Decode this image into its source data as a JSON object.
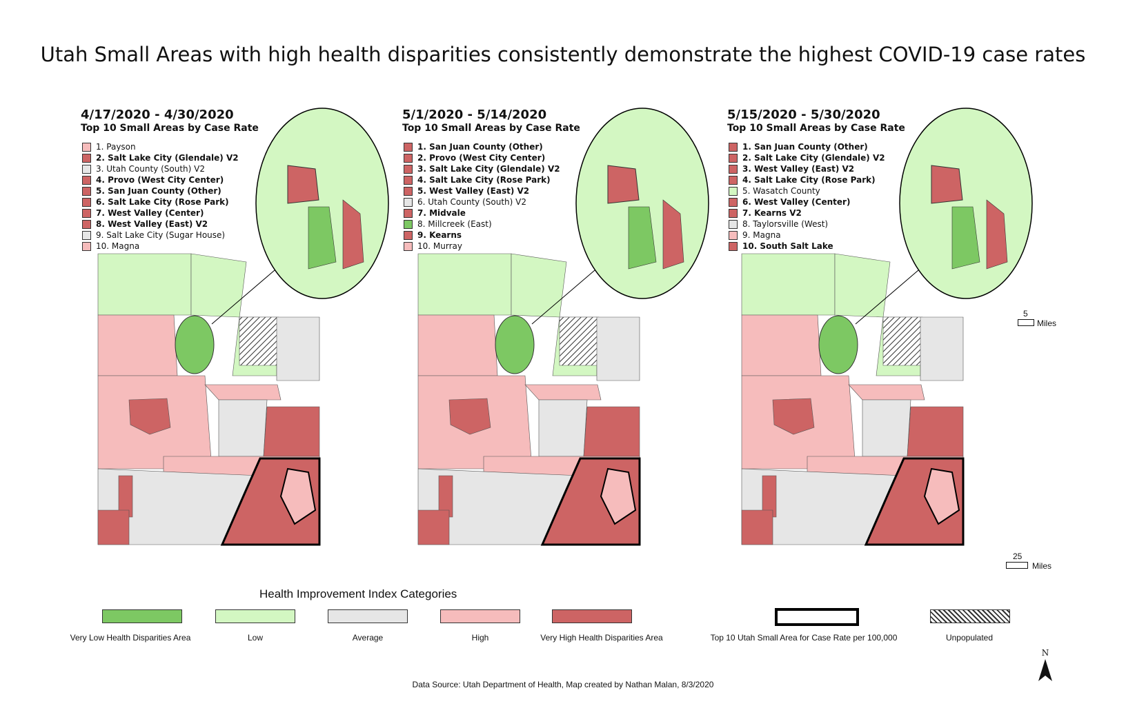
{
  "title": "Utah Small Areas with high health disparities consistently demonstrate the highest COVID-19 case rates",
  "colors": {
    "very_low": "#7dc863",
    "low": "#d3f7c2",
    "average": "#e6e6e6",
    "high": "#f6bcbc",
    "very_high": "#cd6464",
    "outline": "#000000"
  },
  "panels": [
    {
      "period": "4/17/2020 - 4/30/2020",
      "subtitle": "Top 10 Small Areas by Case Rate",
      "items": [
        {
          "label": "1. Payson",
          "category": "high",
          "bold": false
        },
        {
          "label": "2. Salt Lake City (Glendale) V2",
          "category": "very_high",
          "bold": true
        },
        {
          "label": "3. Utah County (South) V2",
          "category": "average",
          "bold": false
        },
        {
          "label": "4. Provo (West City Center)",
          "category": "very_high",
          "bold": true
        },
        {
          "label": "5. San Juan County (Other)",
          "category": "very_high",
          "bold": true
        },
        {
          "label": "6. Salt Lake City (Rose Park)",
          "category": "very_high",
          "bold": true
        },
        {
          "label": "7. West Valley (Center)",
          "category": "very_high",
          "bold": true
        },
        {
          "label": "8. West Valley (East) V2",
          "category": "very_high",
          "bold": true
        },
        {
          "label": "9. Salt Lake City (Sugar House)",
          "category": "average",
          "bold": false
        },
        {
          "label": "10. Magna",
          "category": "high",
          "bold": false
        }
      ]
    },
    {
      "period": "5/1/2020 - 5/14/2020",
      "subtitle": "Top 10 Small Areas by Case Rate",
      "items": [
        {
          "label": "1. San Juan County (Other)",
          "category": "very_high",
          "bold": true
        },
        {
          "label": "2. Provo (West City Center)",
          "category": "very_high",
          "bold": true
        },
        {
          "label": "3. Salt Lake City (Glendale) V2",
          "category": "very_high",
          "bold": true
        },
        {
          "label": "4. Salt Lake City (Rose Park)",
          "category": "very_high",
          "bold": true
        },
        {
          "label": "5. West Valley (East) V2",
          "category": "very_high",
          "bold": true
        },
        {
          "label": "6. Utah County (South) V2",
          "category": "average",
          "bold": false
        },
        {
          "label": "7. Midvale",
          "category": "very_high",
          "bold": true
        },
        {
          "label": "8. Millcreek (East)",
          "category": "very_low",
          "bold": false
        },
        {
          "label": "9. Kearns",
          "category": "very_high",
          "bold": true
        },
        {
          "label": "10. Murray",
          "category": "high",
          "bold": false
        }
      ]
    },
    {
      "period": "5/15/2020 - 5/30/2020",
      "subtitle": "Top 10 Small Areas by Case Rate",
      "items": [
        {
          "label": "1. San Juan County (Other)",
          "category": "very_high",
          "bold": true
        },
        {
          "label": "2. Salt Lake City (Glendale) V2",
          "category": "very_high",
          "bold": true
        },
        {
          "label": "3. West Valley (East) V2",
          "category": "very_high",
          "bold": true
        },
        {
          "label": "4. Salt Lake City (Rose Park)",
          "category": "very_high",
          "bold": true
        },
        {
          "label": "5. Wasatch County",
          "category": "low",
          "bold": false
        },
        {
          "label": "6. West Valley (Center)",
          "category": "very_high",
          "bold": true
        },
        {
          "label": "7. Kearns V2",
          "category": "very_high",
          "bold": true
        },
        {
          "label": "8. Taylorsville (West)",
          "category": "average",
          "bold": false
        },
        {
          "label": "9. Magna",
          "category": "high",
          "bold": false
        },
        {
          "label": "10. South Salt Lake",
          "category": "very_high",
          "bold": true
        }
      ]
    }
  ],
  "scale": {
    "inset_value": "5",
    "inset_unit": "Miles",
    "main_value": "25",
    "main_unit": "Miles"
  },
  "legend": {
    "title": "Health Improvement Index Categories",
    "items": [
      {
        "label": "Very Low Health Disparities Area",
        "category": "very_low"
      },
      {
        "label": "Low",
        "category": "low"
      },
      {
        "label": "Average",
        "category": "average"
      },
      {
        "label": "High",
        "category": "high"
      },
      {
        "label": "Very High Health Disparities Area",
        "category": "very_high"
      },
      {
        "label": "Top 10 Utah Small Area for Case Rate per 100,000",
        "category": "outline"
      },
      {
        "label": "Unpopulated",
        "category": "unpopulated"
      }
    ]
  },
  "north_label": "N",
  "source": "Data Source: Utah Department of Health, Map created by Nathan Malan, 8/3/2020"
}
